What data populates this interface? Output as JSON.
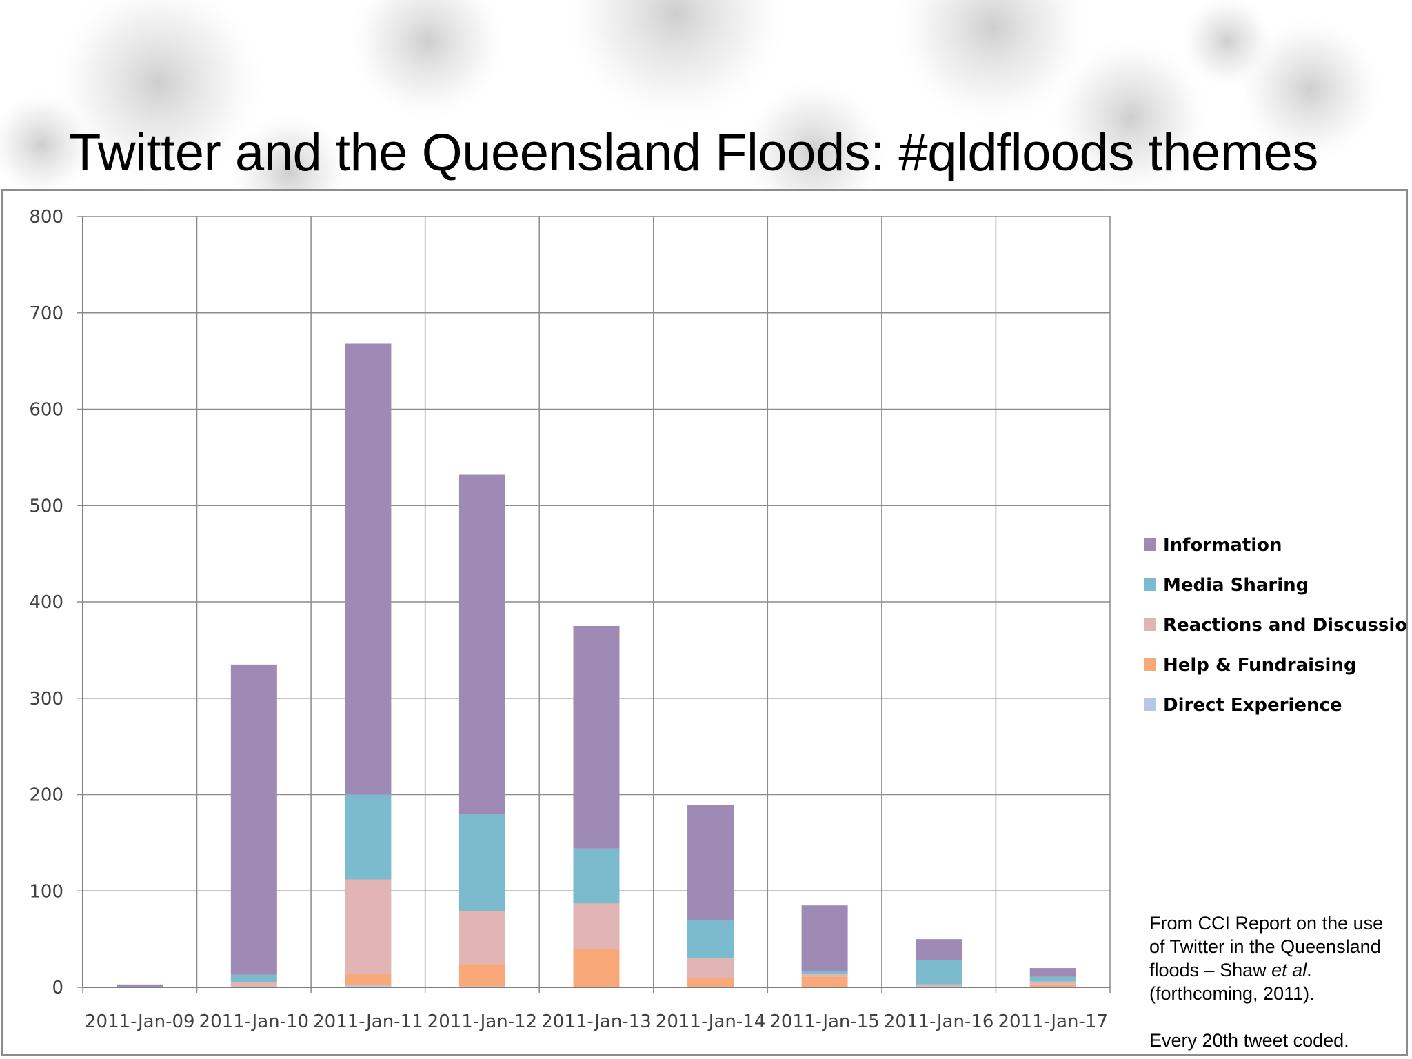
{
  "title": "Twitter and the Queensland Floods: #qldfloods themes",
  "source_note": {
    "line1": "From CCI Report on the use",
    "line2": "of Twitter in the Queensland",
    "line3_pre": "floods – Shaw ",
    "line3_em": "et al",
    "line3_post": ".",
    "line4": "(forthcoming, 2011).",
    "line5": "Every 20th tweet coded."
  },
  "chart_data": {
    "type": "bar",
    "stacked": true,
    "categories": [
      "2011-Jan-09",
      "2011-Jan-10",
      "2011-Jan-11",
      "2011-Jan-12",
      "2011-Jan-13",
      "2011-Jan-14",
      "2011-Jan-15",
      "2011-Jan-16",
      "2011-Jan-17"
    ],
    "series": [
      {
        "name": "Direct Experience",
        "color": "#b4c7e7",
        "values": [
          0,
          0,
          2,
          1,
          0,
          0,
          0,
          0,
          0
        ]
      },
      {
        "name": "Help & Fundraising",
        "color": "#f9a87a",
        "values": [
          0,
          0,
          12,
          23,
          40,
          10,
          11,
          0,
          3
        ]
      },
      {
        "name": "Reactions and Discussion",
        "color": "#e0b5b3",
        "values": [
          0,
          5,
          98,
          55,
          47,
          20,
          3,
          3,
          3
        ]
      },
      {
        "name": "Media Sharing",
        "color": "#7cbacd",
        "values": [
          0,
          8,
          88,
          101,
          57,
          40,
          3,
          25,
          5
        ]
      },
      {
        "name": "Information",
        "color": "#9e8ab5",
        "values": [
          3,
          322,
          468,
          352,
          231,
          119,
          68,
          22,
          9
        ]
      }
    ],
    "legend_order": [
      "Information",
      "Media Sharing",
      "Reactions and Discussion",
      "Help & Fundraising",
      "Direct Experience"
    ],
    "ylim": [
      0,
      800
    ],
    "yticks": [
      0,
      100,
      200,
      300,
      400,
      500,
      600,
      700,
      800
    ],
    "xlabel": "",
    "ylabel": "",
    "grid": true,
    "legend_position": "right"
  }
}
